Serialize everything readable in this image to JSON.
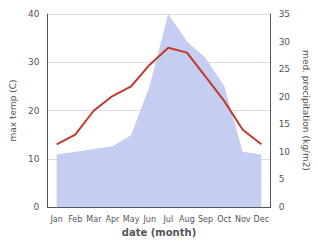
{
  "chart_data": {
    "type": "line",
    "xlabel": "date (month)",
    "ylabel": "max temp (C)",
    "y2label": "med. precipitation (kg/m2)",
    "categories": [
      "Jan",
      "Feb",
      "Mar",
      "Apr",
      "May",
      "Jun",
      "Jul",
      "Aug",
      "Sep",
      "Oct",
      "Nov",
      "Dec"
    ],
    "series": [
      {
        "type": "area",
        "axis": "y2",
        "color": "#c5cef0",
        "values": [
          9.5,
          10.0,
          10.5,
          11.0,
          13.0,
          22.0,
          35.0,
          30.0,
          27.0,
          22.0,
          10.0,
          9.5
        ]
      },
      {
        "type": "line",
        "color": "#c0392b",
        "values": [
          13.0,
          15.0,
          20.0,
          23.0,
          25.0,
          29.5,
          33.0,
          32.0,
          27.0,
          22.0,
          16.0,
          13.0
        ]
      }
    ],
    "ylim": [
      0,
      40
    ],
    "yticks": [
      0,
      10,
      20,
      30,
      40
    ],
    "y2lim": [
      0,
      35
    ],
    "y2ticks": [
      0,
      5,
      10,
      15,
      20,
      25,
      30,
      35
    ],
    "grid": true
  }
}
